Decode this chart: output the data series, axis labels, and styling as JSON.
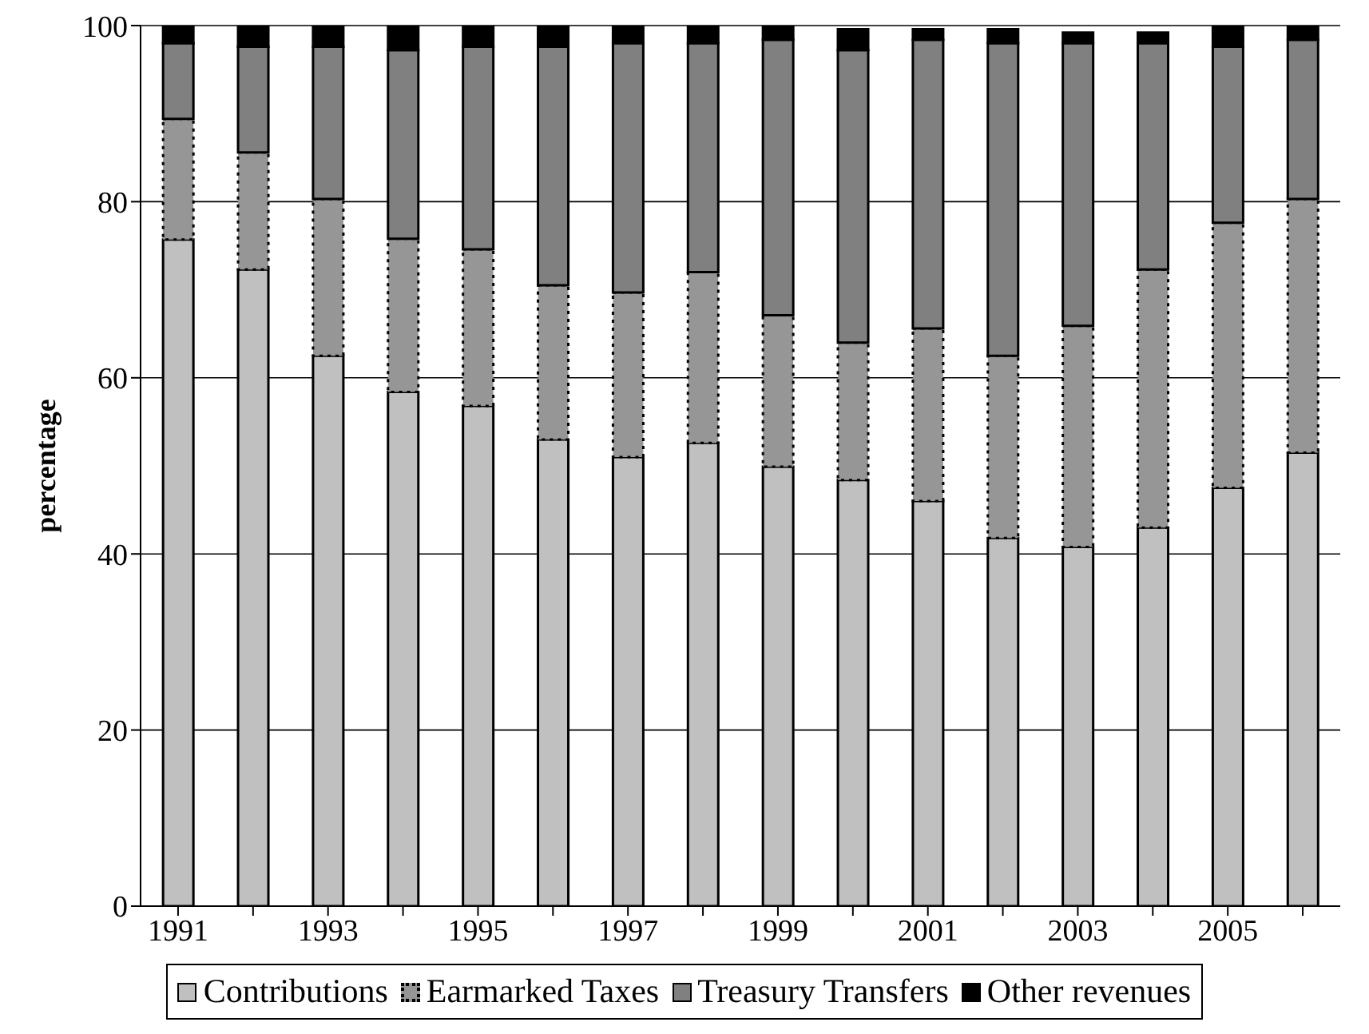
{
  "chart_data": {
    "type": "bar",
    "stacked": true,
    "ylabel": "percentage",
    "categories": [
      "1991",
      null,
      "1993",
      null,
      "1995",
      null,
      "1997",
      null,
      "1999",
      null,
      "2001",
      null,
      "2003",
      null,
      "2005",
      null
    ],
    "series": [
      {
        "name": "Contributions",
        "color": "#c0c0c0",
        "values": [
          75.7,
          72.3,
          62.5,
          58.4,
          56.8,
          53.0,
          51.0,
          52.6,
          49.9,
          48.4,
          46.0,
          41.8,
          40.8,
          43.0,
          47.5,
          51.5
        ]
      },
      {
        "name": "Earmarked Taxes",
        "color": "#969696",
        "line_style": "dotted",
        "values": [
          13.7,
          13.3,
          17.8,
          17.4,
          17.8,
          17.5,
          18.7,
          19.4,
          17.2,
          15.6,
          19.6,
          20.7,
          25.1,
          29.3,
          30.1,
          28.8
        ]
      },
      {
        "name": "Treasury Transfers",
        "color": "#808080",
        "values": [
          8.6,
          12.0,
          17.3,
          21.4,
          23.0,
          27.1,
          28.3,
          26.0,
          31.3,
          33.2,
          32.8,
          35.5,
          32.1,
          25.7,
          20.0,
          18.1
        ]
      },
      {
        "name": "Other revenues",
        "color": "#000000",
        "values": [
          2.0,
          2.4,
          2.4,
          2.8,
          2.4,
          2.4,
          2.0,
          2.0,
          1.6,
          2.4,
          1.2,
          1.6,
          1.2,
          1.2,
          2.4,
          1.6
        ]
      }
    ],
    "ylim": [
      0,
      100
    ],
    "yticks": [
      0,
      20,
      40,
      60,
      80,
      100
    ],
    "grid": "y",
    "legend": "bottom"
  }
}
